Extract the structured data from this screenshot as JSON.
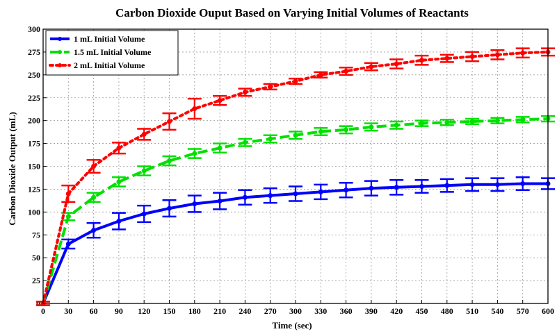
{
  "chart_data": {
    "type": "line",
    "title": "Carbon Dioxide Ouput Based on Varying Initial Volumes of Reactants",
    "xlabel": "Time (sec)",
    "ylabel": "Carbon Dioxide Output (mL)",
    "xlim": [
      0,
      600
    ],
    "ylim": [
      0,
      300
    ],
    "x_ticks": [
      "0",
      "30",
      "60",
      "90",
      "120",
      "150",
      "180",
      "210",
      "240",
      "270",
      "300",
      "330",
      "360",
      "390",
      "420",
      "450",
      "480",
      "510",
      "540",
      "570",
      "600"
    ],
    "y_ticks": [
      "0",
      "25",
      "50",
      "75",
      "100",
      "125",
      "150",
      "175",
      "200",
      "225",
      "250",
      "275",
      "300"
    ],
    "grid": true,
    "legend_position": "top-left",
    "x": [
      0,
      30,
      60,
      90,
      120,
      150,
      180,
      210,
      240,
      270,
      300,
      330,
      360,
      390,
      420,
      450,
      480,
      510,
      540,
      570,
      600
    ],
    "series": [
      {
        "name": "1 mL Initial Volume",
        "color": "#0000ff",
        "line_style": "solid",
        "values": [
          0,
          65,
          80,
          90,
          98,
          104,
          109,
          112,
          116,
          118,
          120,
          122,
          124,
          126,
          127,
          128,
          129,
          130,
          130,
          131,
          131
        ],
        "errors": [
          2,
          5,
          8,
          9,
          9,
          9,
          9,
          9,
          8,
          8,
          8,
          8,
          8,
          8,
          8,
          7,
          7,
          7,
          7,
          7,
          6
        ]
      },
      {
        "name": "1.5 mL Initial Volume",
        "color": "#00e000",
        "line_style": "dashed",
        "values": [
          0,
          95,
          116,
          133,
          145,
          156,
          164,
          170,
          176,
          180,
          184,
          188,
          190,
          193,
          195,
          197,
          198,
          199,
          200,
          201,
          202
        ],
        "errors": [
          2,
          4,
          5,
          5,
          5,
          5,
          5,
          5,
          4,
          4,
          4,
          4,
          4,
          4,
          4,
          3,
          3,
          3,
          3,
          3,
          3
        ]
      },
      {
        "name": "2 mL Initial Volume",
        "color": "#ff0000",
        "line_style": "dotted",
        "values": [
          0,
          120,
          150,
          170,
          185,
          199,
          213,
          222,
          231,
          237,
          243,
          250,
          254,
          259,
          262,
          266,
          268,
          270,
          272,
          274,
          275
        ],
        "errors": [
          2,
          9,
          7,
          6,
          6,
          9,
          11,
          5,
          4,
          3,
          3,
          3,
          4,
          4,
          5,
          5,
          4,
          5,
          5,
          5,
          4
        ]
      }
    ]
  }
}
